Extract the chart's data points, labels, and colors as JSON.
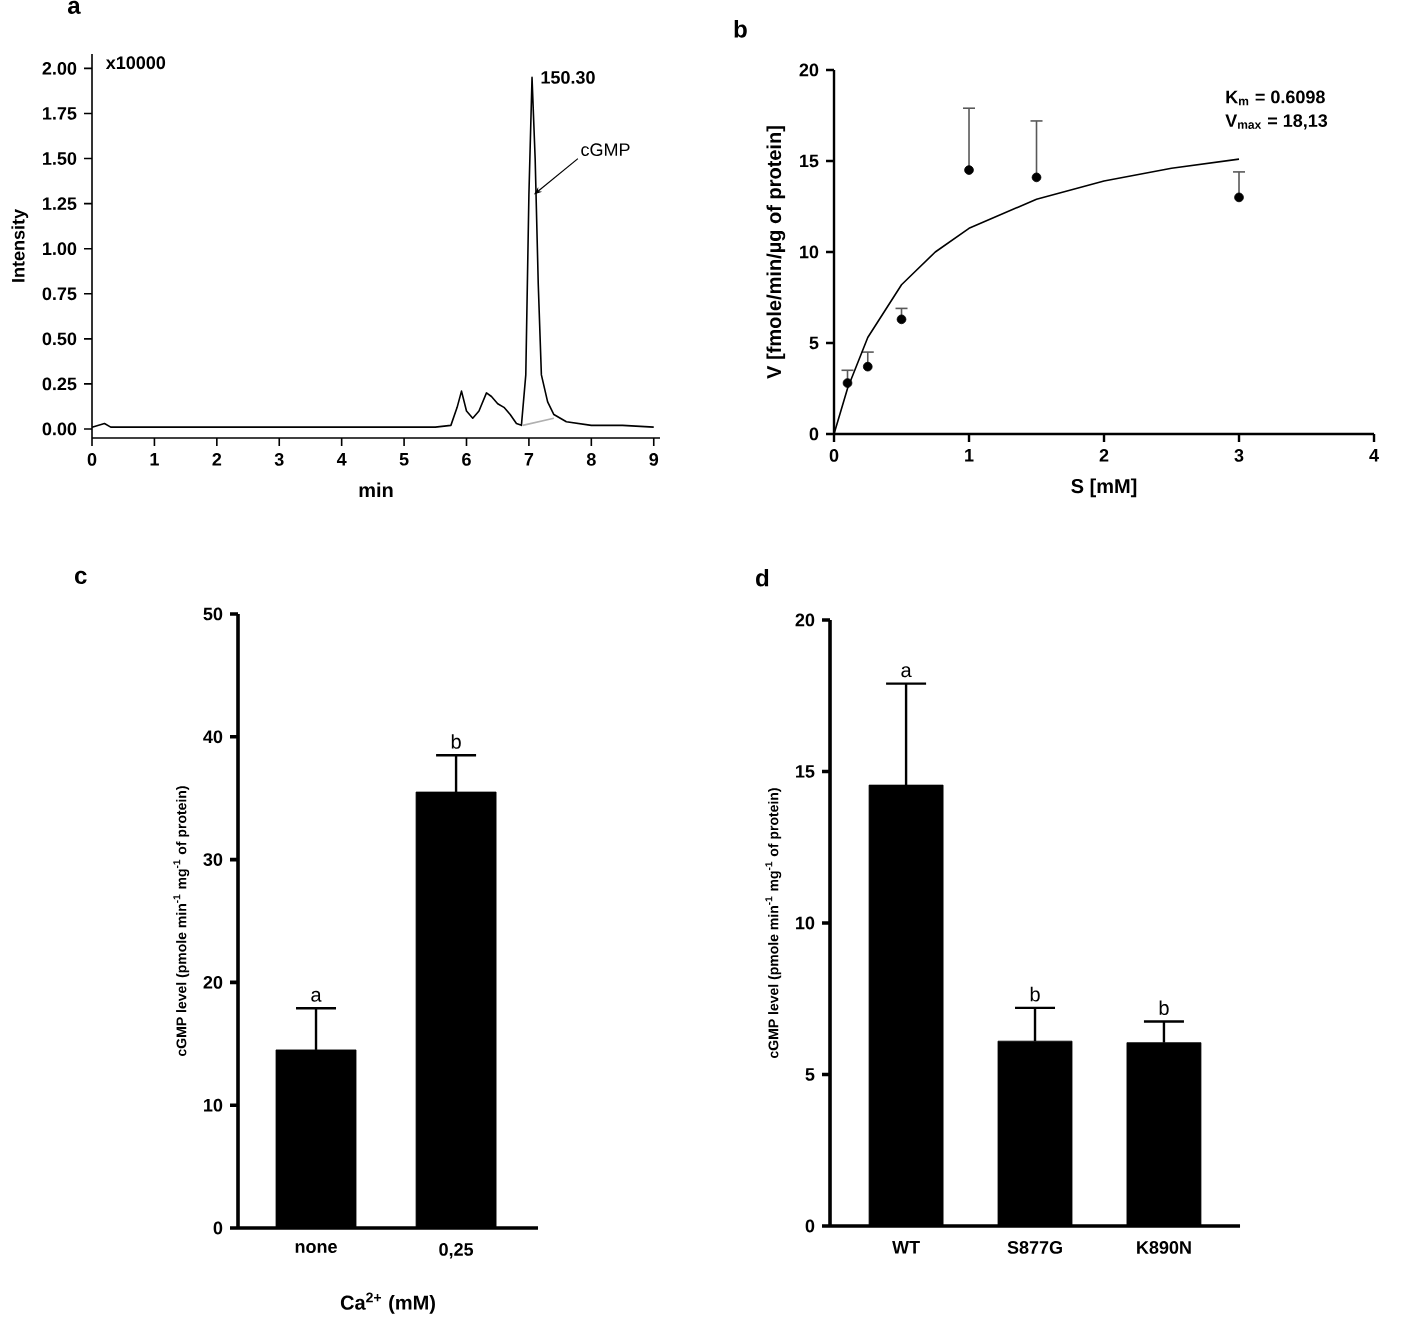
{
  "chart_data": [
    {
      "type": "line",
      "title": "a",
      "xlabel": "min",
      "ylabel": "Intensity",
      "x": [
        0,
        0.1,
        0.2,
        0.3,
        0.5,
        1,
        2,
        3,
        4,
        5,
        5.5,
        5.75,
        5.85,
        5.92,
        6.0,
        6.1,
        6.2,
        6.32,
        6.4,
        6.5,
        6.6,
        6.7,
        6.8,
        6.88,
        6.95,
        7.0,
        7.05,
        7.1,
        7.15,
        7.2,
        7.3,
        7.4,
        7.6,
        8,
        8.5,
        9
      ],
      "series": [
        {
          "color": "#000000",
          "values": [
            0.01,
            0.02,
            0.03,
            0.01,
            0.01,
            0.01,
            0.01,
            0.01,
            0.01,
            0.01,
            0.01,
            0.02,
            0.12,
            0.21,
            0.1,
            0.06,
            0.1,
            0.2,
            0.18,
            0.14,
            0.12,
            0.08,
            0.03,
            0.02,
            0.3,
            1.3,
            1.95,
            1.5,
            0.8,
            0.3,
            0.15,
            0.08,
            0.04,
            0.02,
            0.02,
            0.01
          ]
        },
        {
          "color": "#b0b0b0",
          "x": [
            6.9,
            7.4
          ],
          "values": [
            0.02,
            0.06
          ]
        }
      ],
      "xlim": [
        0,
        9.1
      ],
      "ylim": [
        -0.05,
        2.08
      ],
      "xticks": [
        0,
        1,
        2,
        3,
        4,
        5,
        6,
        7,
        8,
        9
      ],
      "yticks": [
        {
          "value": 0,
          "label": "0.00"
        },
        {
          "value": 0.25,
          "label": "0.25"
        },
        {
          "value": 0.5,
          "label": "0.50"
        },
        {
          "value": 0.75,
          "label": "0.75"
        },
        {
          "value": 1,
          "label": "1.00"
        },
        {
          "value": 1.25,
          "label": "1.25"
        },
        {
          "value": 1.5,
          "label": "1.50"
        },
        {
          "value": 1.75,
          "label": "1.75"
        },
        {
          "value": 2,
          "label": "2.00"
        }
      ],
      "annotations": [
        "x10000",
        {
          "text": "150.30",
          "x": 7.05,
          "y": 1.95
        },
        {
          "text": "cGMP",
          "x": 7.08,
          "y": 1.3
        }
      ]
    },
    {
      "type": "scatter",
      "title": "b",
      "xlabel": "S [mM]",
      "ylabel": "V [fmole/min/µg of protein]",
      "series": [
        {
          "type": "scatter",
          "color": "#000000",
          "marker": "circle",
          "x": [
            0.1,
            0.25,
            0.5,
            1,
            1.5,
            3
          ],
          "values": [
            2.8,
            3.7,
            6.3,
            14.5,
            14.1,
            13
          ],
          "errors": [
            [
              2.8,
              3.5
            ],
            [
              3.7,
              4.5
            ],
            [
              6.3,
              6.9
            ],
            [
              14.5,
              17.9
            ],
            [
              14.1,
              17.2
            ],
            [
              13,
              14.4
            ]
          ]
        },
        {
          "type": "line",
          "color": "#000000",
          "x": [
            0,
            0.1,
            0.25,
            0.5,
            0.75,
            1,
            1.5,
            2,
            2.5,
            3
          ],
          "values": [
            0,
            2.5,
            5.3,
            8.2,
            10,
            11.3,
            12.9,
            13.9,
            14.6,
            15.1
          ]
        }
      ],
      "xlim": [
        0,
        4
      ],
      "ylim": [
        0,
        20
      ],
      "xticks": [
        0,
        1,
        2,
        3,
        4
      ],
      "yticks": [
        0,
        5,
        10,
        15,
        20
      ],
      "annotations": [
        "K$_{m}$ = 0.6098",
        "V$_{max}$ = 18,13"
      ]
    },
    {
      "type": "bar",
      "title": "c",
      "xlabel": "Ca$^{2+}$ (mM)",
      "ylabel": "cGMP level (pmole min$^{-1}$ mg$^{-1}$ of protein)",
      "categories": [
        "none",
        "0,25"
      ],
      "values": [
        14.5,
        35.5
      ],
      "errors": [
        [
          14.5,
          17.9
        ],
        [
          35.5,
          38.5
        ]
      ],
      "color": "#000000",
      "ylim": [
        0,
        50
      ],
      "yticks": [
        0,
        10,
        20,
        30,
        40,
        50
      ],
      "annotations": [
        {
          "text": "a",
          "x": "none",
          "y": 17.9
        },
        {
          "text": "b",
          "x": "0,25",
          "y": 38.5
        }
      ]
    },
    {
      "type": "bar",
      "title": "d",
      "ylabel": "cGMP level (pmole min$^{-1}$ mg$^{-1}$ of protein)",
      "categories": [
        "WT",
        "S877G",
        "K890N"
      ],
      "values": [
        14.55,
        6.1,
        6.05
      ],
      "errors": [
        [
          14.55,
          17.9
        ],
        [
          6.1,
          7.2
        ],
        [
          6.05,
          6.75
        ]
      ],
      "color": "#000000",
      "ylim": [
        0,
        20
      ],
      "yticks": [
        0,
        5,
        10,
        15,
        20
      ],
      "annotations": [
        {
          "text": "a",
          "x": "WT",
          "y": 17.9
        },
        {
          "text": "b",
          "x": "S877G",
          "y": 7.2
        },
        {
          "text": "b",
          "x": "K890N",
          "y": 6.75
        }
      ]
    }
  ]
}
